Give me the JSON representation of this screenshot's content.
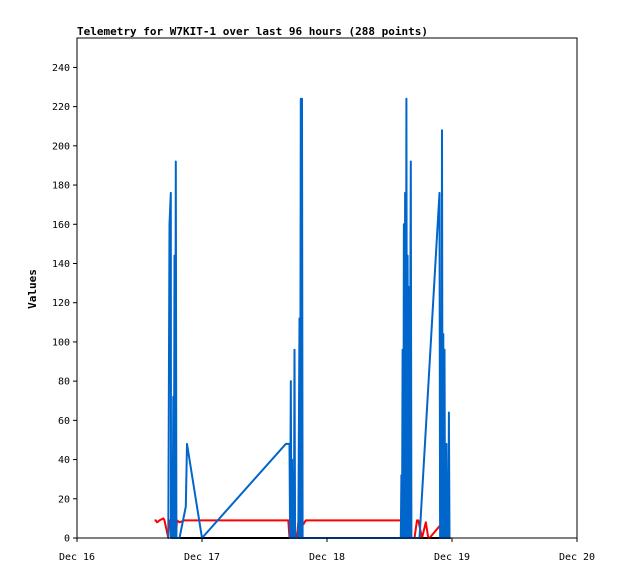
{
  "chart_data": {
    "type": "line",
    "title": "Telemetry for W7KIT-1 over last 96 hours (288 points)",
    "ylabel": "Values",
    "xlabel": "",
    "xlim": [
      0,
      4
    ],
    "ylim": [
      0,
      255
    ],
    "x_ticks": [
      {
        "value": 0,
        "label": "Dec 16"
      },
      {
        "value": 1,
        "label": "Dec 17"
      },
      {
        "value": 2,
        "label": "Dec 18"
      },
      {
        "value": 3,
        "label": "Dec 19"
      },
      {
        "value": 4,
        "label": "Dec 20"
      }
    ],
    "y_ticks": [
      0,
      20,
      40,
      60,
      80,
      100,
      120,
      140,
      160,
      180,
      200,
      220,
      240
    ],
    "grid": false,
    "legend": "none",
    "series": [
      {
        "color": "#000000",
        "points": [
          [
            0.75,
            0
          ],
          [
            1.0,
            0
          ],
          [
            1.5,
            0
          ],
          [
            2.0,
            0
          ],
          [
            2.5,
            0
          ],
          [
            2.9,
            0
          ]
        ]
      },
      {
        "color": "#ff0000",
        "points": [
          [
            0.62,
            9
          ],
          [
            0.63,
            9
          ],
          [
            0.64,
            8
          ],
          [
            0.66,
            9
          ],
          [
            0.69,
            10
          ],
          [
            0.7,
            9
          ],
          [
            0.73,
            0
          ],
          [
            0.74,
            9
          ],
          [
            0.76,
            9
          ],
          [
            0.79,
            0
          ],
          [
            0.8,
            9
          ],
          [
            0.82,
            8
          ],
          [
            0.86,
            9
          ],
          [
            0.95,
            9
          ],
          [
            1.2,
            9
          ],
          [
            1.5,
            9
          ],
          [
            1.69,
            9
          ],
          [
            1.7,
            0
          ],
          [
            1.73,
            0
          ],
          [
            1.74,
            6
          ],
          [
            1.75,
            0
          ],
          [
            1.76,
            0
          ],
          [
            1.77,
            8
          ],
          [
            1.79,
            8
          ],
          [
            1.81,
            7
          ],
          [
            1.83,
            9
          ],
          [
            1.9,
            9
          ],
          [
            2.2,
            9
          ],
          [
            2.5,
            9
          ],
          [
            2.65,
            9
          ],
          [
            2.66,
            0
          ],
          [
            2.7,
            0
          ],
          [
            2.72,
            9
          ],
          [
            2.73,
            9
          ],
          [
            2.76,
            0
          ],
          [
            2.79,
            8
          ],
          [
            2.81,
            0
          ],
          [
            2.82,
            0
          ],
          [
            2.86,
            3
          ],
          [
            2.9,
            6
          ],
          [
            2.94,
            8
          ],
          [
            2.95,
            0
          ],
          [
            2.99,
            0
          ]
        ]
      },
      {
        "color": "#0066cc",
        "points": [
          [
            0.73,
            0
          ],
          [
            0.74,
            160
          ],
          [
            0.75,
            176
          ],
          [
            0.752,
            0
          ],
          [
            0.76,
            40
          ],
          [
            0.765,
            0
          ],
          [
            0.77,
            72
          ],
          [
            0.775,
            0
          ],
          [
            0.78,
            144
          ],
          [
            0.785,
            0
          ],
          [
            0.79,
            192
          ],
          [
            0.795,
            0
          ],
          [
            0.8,
            0
          ],
          [
            0.82,
            0
          ],
          [
            0.87,
            16
          ],
          [
            0.88,
            48
          ],
          [
            1.0,
            0
          ],
          [
            1.67,
            48
          ],
          [
            1.7,
            48
          ],
          [
            1.705,
            0
          ],
          [
            1.71,
            80
          ],
          [
            1.715,
            0
          ],
          [
            1.72,
            40
          ],
          [
            1.725,
            0
          ],
          [
            1.73,
            32
          ],
          [
            1.735,
            0
          ],
          [
            1.74,
            96
          ],
          [
            1.745,
            0
          ],
          [
            1.75,
            0
          ],
          [
            1.77,
            0
          ],
          [
            1.78,
            112
          ],
          [
            1.785,
            0
          ],
          [
            1.79,
            224
          ],
          [
            1.795,
            0
          ],
          [
            1.8,
            224
          ],
          [
            1.805,
            0
          ],
          [
            2.59,
            0
          ],
          [
            2.595,
            32
          ],
          [
            2.6,
            0
          ],
          [
            2.605,
            96
          ],
          [
            2.61,
            0
          ],
          [
            2.615,
            160
          ],
          [
            2.62,
            0
          ],
          [
            2.625,
            176
          ],
          [
            2.63,
            0
          ],
          [
            2.635,
            224
          ],
          [
            2.64,
            0
          ],
          [
            2.645,
            144
          ],
          [
            2.65,
            0
          ],
          [
            2.655,
            128
          ],
          [
            2.66,
            0
          ],
          [
            2.67,
            192
          ],
          [
            2.675,
            0
          ],
          [
            2.68,
            0
          ],
          [
            2.74,
            0
          ],
          [
            2.9,
            176
          ],
          [
            2.905,
            0
          ],
          [
            2.91,
            88
          ],
          [
            2.915,
            0
          ],
          [
            2.92,
            208
          ],
          [
            2.925,
            0
          ],
          [
            2.93,
            104
          ],
          [
            2.935,
            0
          ],
          [
            2.94,
            96
          ],
          [
            2.945,
            0
          ],
          [
            2.955,
            48
          ],
          [
            2.96,
            0
          ],
          [
            2.965,
            32
          ],
          [
            2.97,
            0
          ],
          [
            2.975,
            64
          ],
          [
            2.98,
            0
          ]
        ]
      }
    ]
  }
}
